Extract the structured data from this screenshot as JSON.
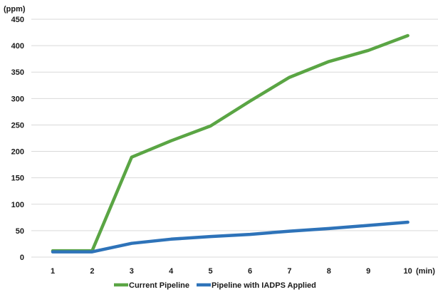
{
  "chart_data": {
    "type": "line",
    "y_unit_label": "(ppm)",
    "x_unit_label": "(min)",
    "x": [
      1,
      2,
      3,
      4,
      5,
      6,
      7,
      8,
      9,
      10
    ],
    "x_tick_labels": [
      "1",
      "2",
      "3",
      "4",
      "5",
      "6",
      "7",
      "8",
      "9",
      "10"
    ],
    "ylim": [
      0,
      450
    ],
    "y_ticks": [
      0,
      50,
      100,
      150,
      200,
      250,
      300,
      350,
      400,
      450
    ],
    "grid": true,
    "legend_position": "bottom",
    "series": [
      {
        "name": "Current Pipeline",
        "color": "#5aa544",
        "values": [
          12,
          12,
          189,
          220,
          248,
          295,
          340,
          370,
          391,
          419
        ]
      },
      {
        "name": "Pipeline with IADPS Applied",
        "color": "#2e73b9",
        "values": [
          10,
          10,
          26,
          34,
          39,
          43,
          49,
          54,
          60,
          66
        ]
      }
    ]
  }
}
